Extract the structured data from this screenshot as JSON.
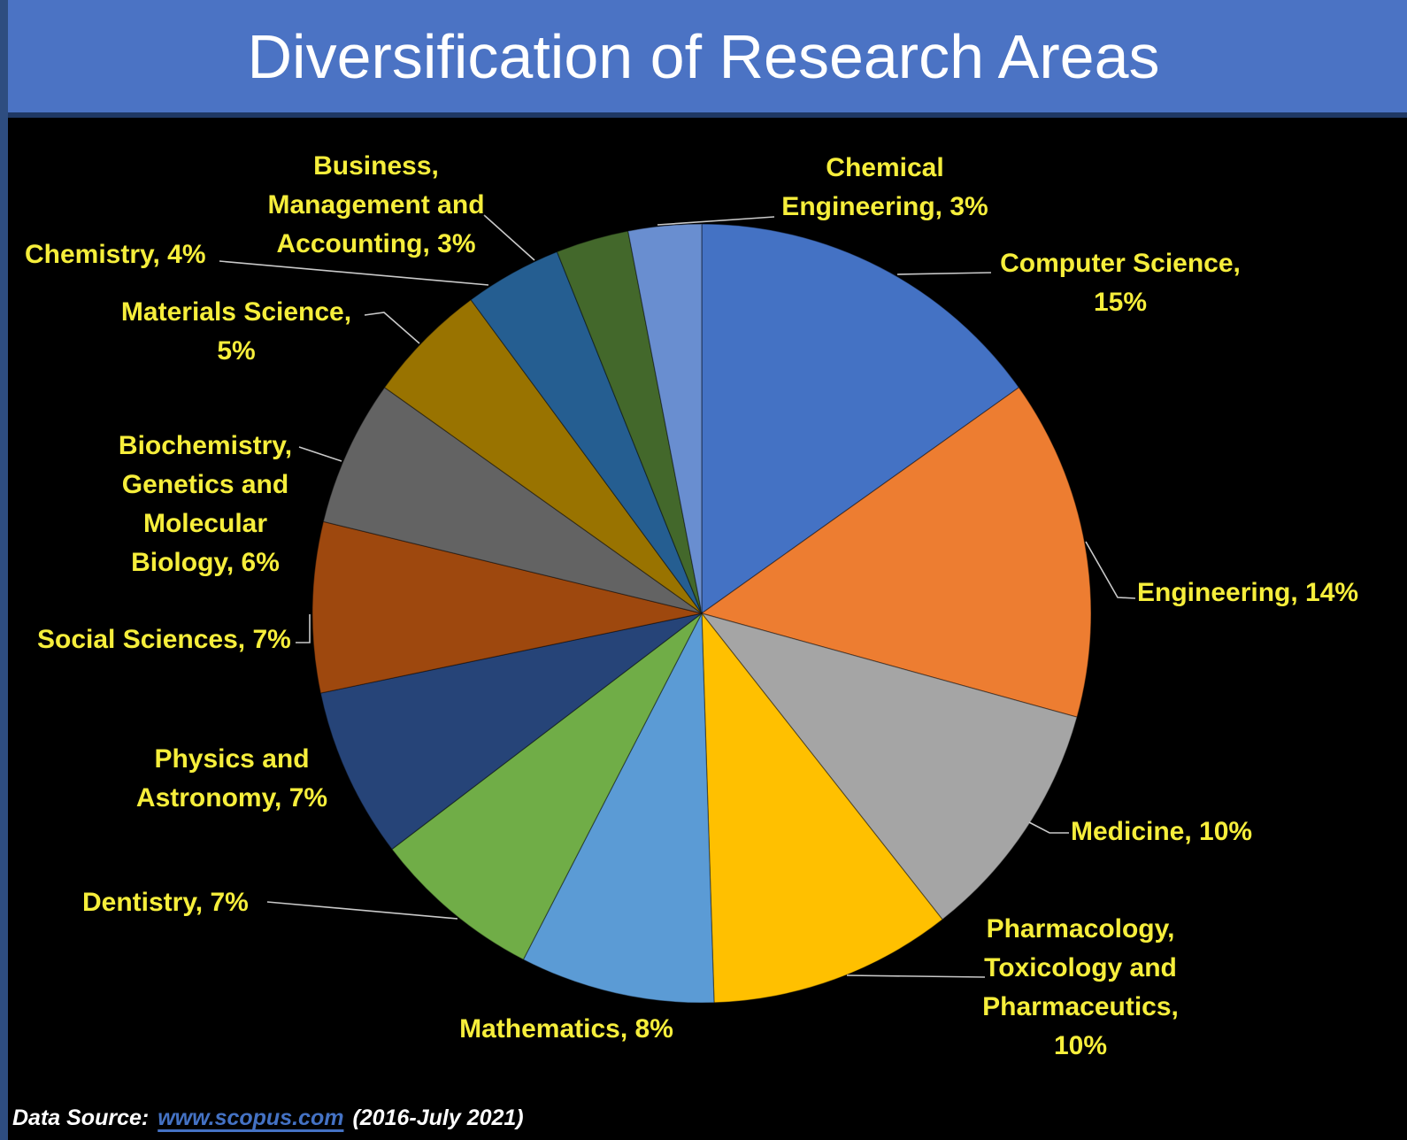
{
  "title": "Diversification of Research Areas",
  "footer": {
    "prefix": "Data Source:",
    "link": "www.scopus.com",
    "suffix": "(2016-July 2021)"
  },
  "colors": {
    "background": "#000000",
    "banner": "#4B73C4",
    "banner_edge": "#1F3864",
    "left_strip": "#2E4D80",
    "title_text": "#FFFFFF",
    "label_text": "#F6EE3B",
    "leader_line": "#C9C9C9",
    "footer_text": "#FFFFFF",
    "link_text": "#4472C4",
    "slice_border": "rgba(0,0,0,0.4)"
  },
  "chart_data": {
    "type": "pie",
    "title": "Diversification of Research Areas",
    "unit": "%",
    "legend": "none",
    "start_angle_deg": 0,
    "direction": "clockwise",
    "labels_position": "outside with leader lines",
    "slices": [
      {
        "name": "Computer Science",
        "value": 15,
        "color": "#4472C4",
        "label_lines": [
          "Computer Science,",
          "15%"
        ]
      },
      {
        "name": "Engineering",
        "value": 14,
        "color": "#ED7D31",
        "label_lines": [
          "Engineering, 14%"
        ]
      },
      {
        "name": "Medicine",
        "value": 10,
        "color": "#A5A5A5",
        "label_lines": [
          "Medicine, 10%"
        ]
      },
      {
        "name": "Pharmacology, Toxicology and Pharmaceutics",
        "value": 10,
        "color": "#FFC000",
        "label_lines": [
          "Pharmacology,",
          "Toxicology and",
          "Pharmaceutics,",
          "10%"
        ]
      },
      {
        "name": "Mathematics",
        "value": 8,
        "color": "#5B9BD5",
        "label_lines": [
          "Mathematics, 8%"
        ]
      },
      {
        "name": "Dentistry",
        "value": 7,
        "color": "#70AD47",
        "label_lines": [
          "Dentistry, 7%"
        ]
      },
      {
        "name": "Physics and Astronomy",
        "value": 7,
        "color": "#264478",
        "label_lines": [
          "Physics and",
          "Astronomy, 7%"
        ]
      },
      {
        "name": "Social Sciences",
        "value": 7,
        "color": "#9E480E",
        "label_lines": [
          "Social Sciences, 7%"
        ]
      },
      {
        "name": "Biochemistry, Genetics and Molecular Biology",
        "value": 6,
        "color": "#636363",
        "label_lines": [
          "Biochemistry,",
          "Genetics and",
          "Molecular",
          "Biology, 6%"
        ]
      },
      {
        "name": "Materials Science",
        "value": 5,
        "color": "#997300",
        "label_lines": [
          "Materials Science,",
          "5%"
        ]
      },
      {
        "name": "Chemistry",
        "value": 4,
        "color": "#255E91",
        "label_lines": [
          "Chemistry, 4%"
        ]
      },
      {
        "name": "Business, Management and Accounting",
        "value": 3,
        "color": "#43682B",
        "label_lines": [
          "Business,",
          "Management and",
          "Accounting, 3%"
        ]
      },
      {
        "name": "Chemical Engineering",
        "value": 3,
        "color": "#698ED0",
        "label_lines": [
          "Chemical",
          "Engineering, 3%"
        ]
      }
    ]
  }
}
